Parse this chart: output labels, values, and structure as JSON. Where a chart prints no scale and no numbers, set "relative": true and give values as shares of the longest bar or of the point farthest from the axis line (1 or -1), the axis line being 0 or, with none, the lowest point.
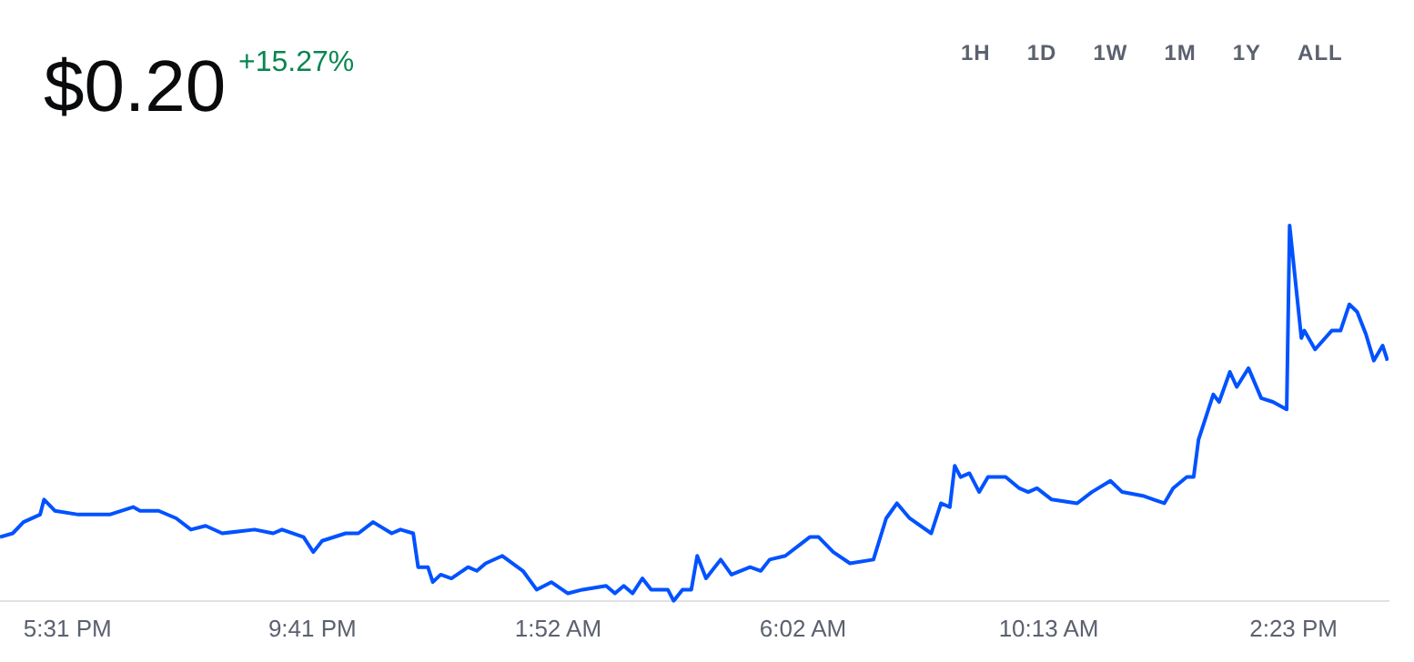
{
  "chart_data": {
    "type": "line",
    "title": "$0.20",
    "subtitle": "+15.27%",
    "annotations": [
      "1H",
      "1D",
      "1W",
      "1M",
      "1Y",
      "ALL"
    ],
    "relative": true,
    "grid": false,
    "legend": false,
    "marker": "none",
    "line_style": "solid",
    "xlim": [
      "--01-01T16:22",
      "--01-02T16:00"
    ],
    "xticks": [
      {
        "value": "--01-01T17:31",
        "label": "5:31 PM"
      },
      {
        "value": "--01-01T21:41",
        "label": "9:41 PM"
      },
      {
        "value": "--01-02T01:52",
        "label": "1:52 AM"
      },
      {
        "value": "--01-02T06:02",
        "label": "6:02 AM"
      },
      {
        "value": "--01-02T10:13",
        "label": "10:13 AM"
      },
      {
        "value": "--01-02T14:23",
        "label": "2:23 PM"
      }
    ],
    "x": [
      "--01-01T16:22",
      "--01-01T16:35",
      "--01-01T16:46",
      "--01-01T17:03",
      "--01-01T17:07",
      "--01-01T17:18",
      "--01-01T17:42",
      "--01-01T18:14",
      "--01-01T18:38",
      "--01-01T18:45",
      "--01-01T19:04",
      "--01-01T19:22",
      "--01-01T19:37",
      "--01-01T19:52",
      "--01-01T20:09",
      "--01-01T20:42",
      "--01-01T21:01",
      "--01-01T21:10",
      "--01-01T21:32",
      "--01-01T21:42",
      "--01-01T21:51",
      "--01-01T22:15",
      "--01-01T22:28",
      "--01-01T22:43",
      "--01-01T23:02",
      "--01-01T23:11",
      "--01-01T23:24",
      "--01-01T23:29",
      "--01-01T23:39",
      "--01-01T23:44",
      "--01-01T23:52",
      "--01-02T00:03",
      "--01-02T00:20",
      "--01-02T00:29",
      "--01-02T00:38",
      "--01-02T00:55",
      "--01-02T01:16",
      "--01-02T01:30",
      "--01-02T01:45",
      "--01-02T02:02",
      "--01-02T02:17",
      "--01-02T02:41",
      "--01-02T02:50",
      "--01-02T02:59",
      "--01-02T03:08",
      "--01-02T03:18",
      "--01-02T03:27",
      "--01-02T03:44",
      "--01-02T03:50",
      "--01-02T03:59",
      "--01-02T04:08",
      "--01-02T04:14",
      "--01-02T04:23",
      "--01-02T04:38",
      "--01-02T04:49",
      "--01-02T05:08",
      "--01-02T05:19",
      "--01-02T05:28",
      "--01-02T05:44",
      "--01-02T05:59",
      "--01-02T06:09",
      "--01-02T06:18",
      "--01-02T06:33",
      "--01-02T06:50",
      "--01-02T07:14",
      "--01-02T07:27",
      "--01-02T07:38",
      "--01-02T07:51",
      "--01-02T08:13",
      "--01-02T08:23",
      "--01-02T08:32",
      "--01-02T08:37",
      "--01-02T08:43",
      "--01-02T08:52",
      "--01-02T09:02",
      "--01-02T09:11",
      "--01-02T09:29",
      "--01-02T09:43",
      "--01-02T09:52",
      "--01-02T10:01",
      "--01-02T10:16",
      "--01-02T10:42",
      "--01-02T10:57",
      "--01-02T11:16",
      "--01-02T11:28",
      "--01-02T11:49",
      "--01-02T12:11",
      "--01-02T12:20",
      "--01-02T12:34",
      "--01-02T12:41",
      "--01-02T12:46",
      "--01-02T13:01",
      "--01-02T13:07",
      "--01-02T13:18",
      "--01-02T13:25",
      "--01-02T13:37",
      "--01-02T13:50",
      "--01-02T14:02",
      "--01-02T14:16",
      "--01-02T14:19",
      "--01-02T14:31",
      "--01-02T14:34",
      "--01-02T14:45",
      "--01-02T15:02",
      "--01-02T15:11",
      "--01-02T15:20",
      "--01-02T15:28",
      "--01-02T15:37",
      "--01-02T15:45",
      "--01-02T15:54",
      "--01-02T15:59"
    ],
    "series": [
      {
        "color": "#0052ff",
        "values": [
          0.17,
          0.18,
          0.21,
          0.23,
          0.27,
          0.24,
          0.23,
          0.23,
          0.25,
          0.24,
          0.24,
          0.22,
          0.19,
          0.2,
          0.18,
          0.19,
          0.18,
          0.19,
          0.17,
          0.13,
          0.16,
          0.18,
          0.18,
          0.21,
          0.18,
          0.19,
          0.18,
          0.09,
          0.09,
          0.05,
          0.07,
          0.06,
          0.09,
          0.08,
          0.1,
          0.12,
          0.08,
          0.03,
          0.05,
          0.02,
          0.03,
          0.04,
          0.02,
          0.04,
          0.02,
          0.06,
          0.03,
          0.03,
          0,
          0.03,
          0.03,
          0.12,
          0.06,
          0.11,
          0.07,
          0.09,
          0.08,
          0.11,
          0.12,
          0.15,
          0.17,
          0.17,
          0.13,
          0.1,
          0.11,
          0.22,
          0.26,
          0.22,
          0.18,
          0.26,
          0.25,
          0.36,
          0.33,
          0.34,
          0.29,
          0.33,
          0.33,
          0.3,
          0.29,
          0.3,
          0.27,
          0.26,
          0.29,
          0.32,
          0.29,
          0.28,
          0.26,
          0.3,
          0.33,
          0.33,
          0.43,
          0.55,
          0.53,
          0.61,
          0.57,
          0.62,
          0.54,
          0.53,
          0.51,
          1.0,
          0.7,
          0.72,
          0.67,
          0.72,
          0.72,
          0.79,
          0.77,
          0.71,
          0.64,
          0.68,
          0.64
        ]
      }
    ]
  }
}
